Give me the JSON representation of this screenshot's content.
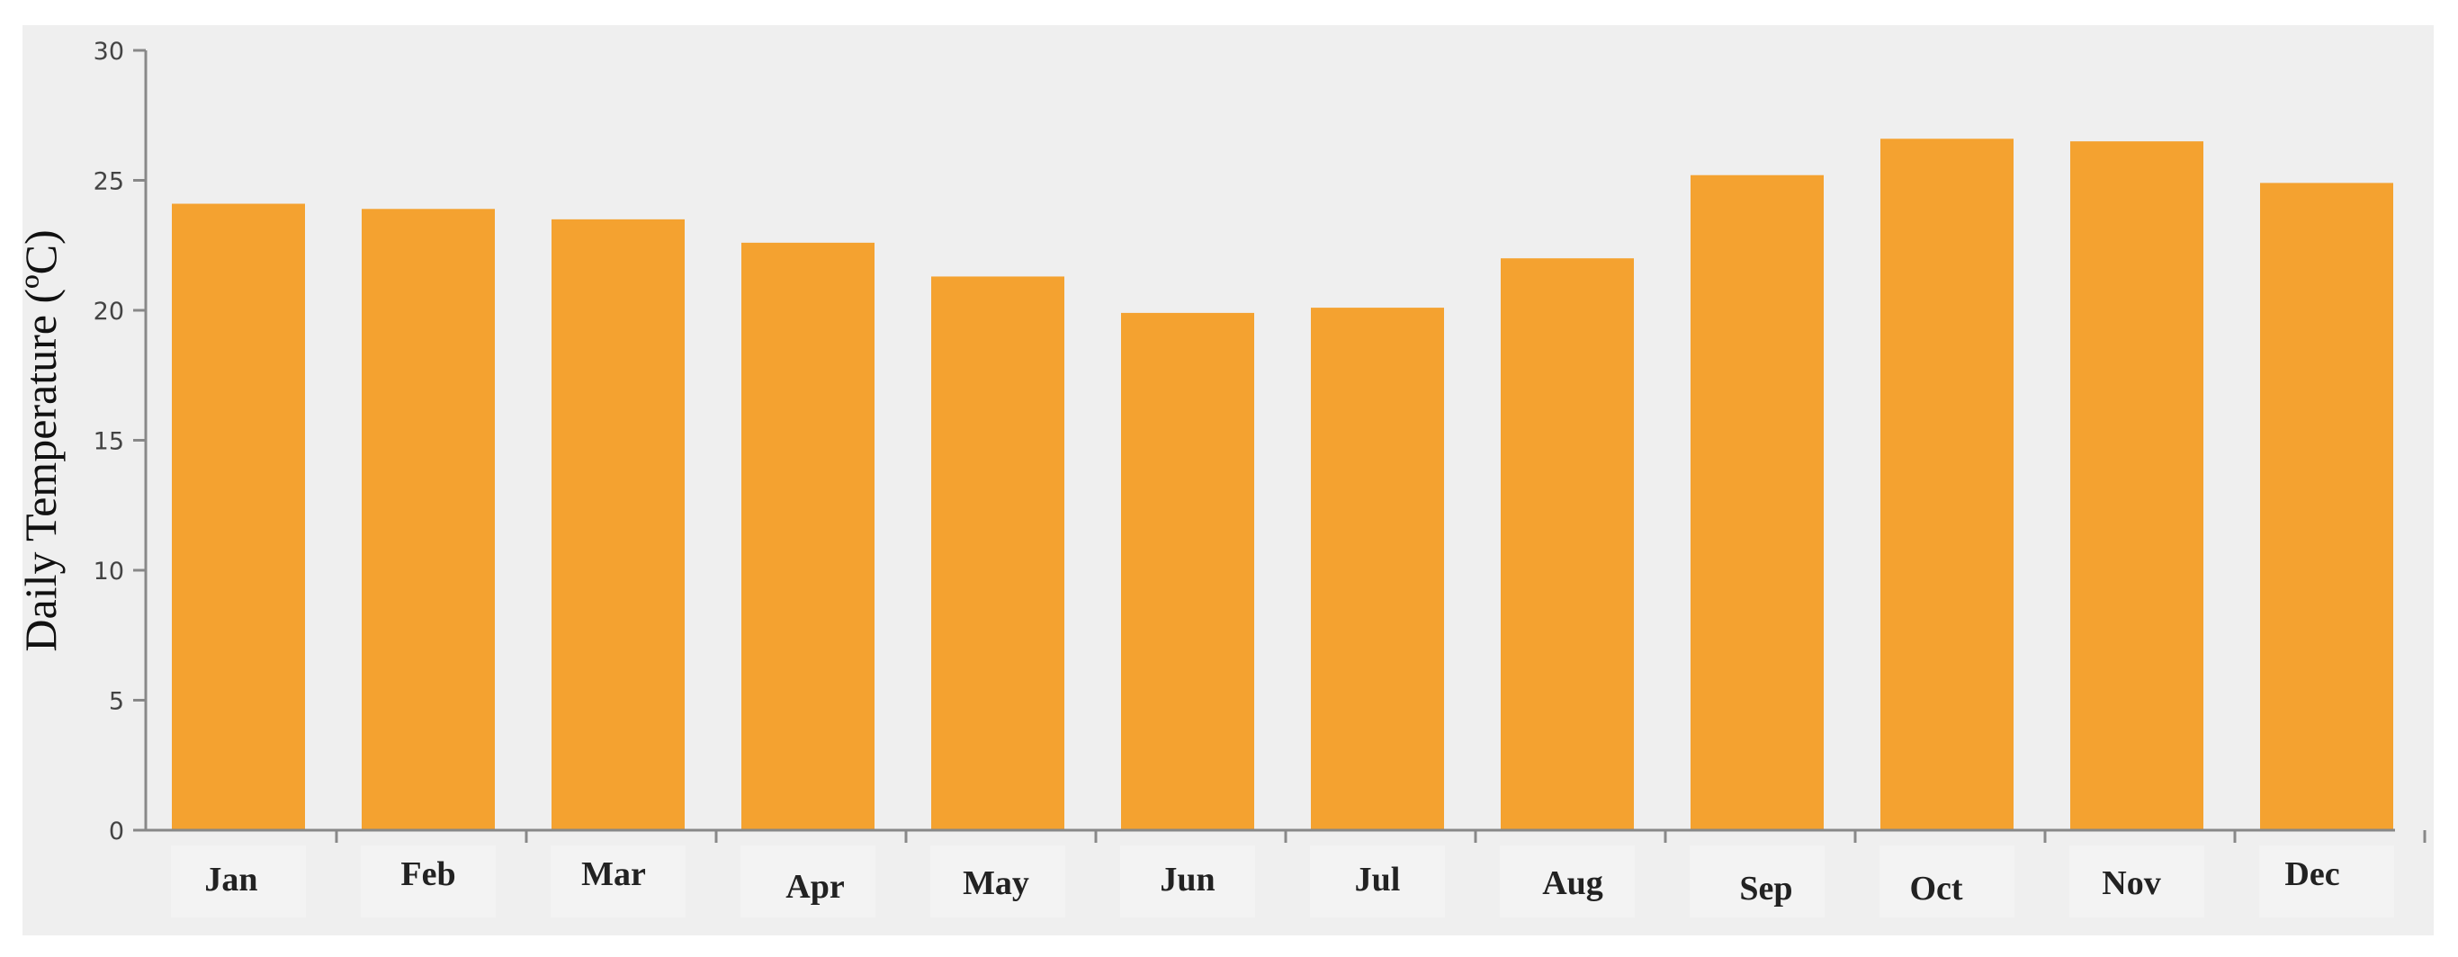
{
  "chart_data": {
    "type": "bar",
    "title": "",
    "xlabel": "",
    "ylabel": "Daily Temperature  (ºC)",
    "ylim": [
      0,
      30
    ],
    "yticks": [
      0,
      5,
      10,
      15,
      20,
      25,
      30
    ],
    "grid": false,
    "categories": [
      "Jan",
      "Feb",
      "Mar",
      "Apr",
      "May",
      "Jun",
      "Jul",
      "Aug",
      "Sep",
      "Oct",
      "Nov",
      "Dec"
    ],
    "values": [
      24.1,
      23.9,
      23.5,
      22.6,
      21.3,
      19.9,
      20.1,
      22.0,
      25.2,
      26.6,
      26.5,
      24.9
    ],
    "colors": {
      "bar": "#f4a230",
      "background": "#efefef",
      "axis": "#888888"
    }
  }
}
